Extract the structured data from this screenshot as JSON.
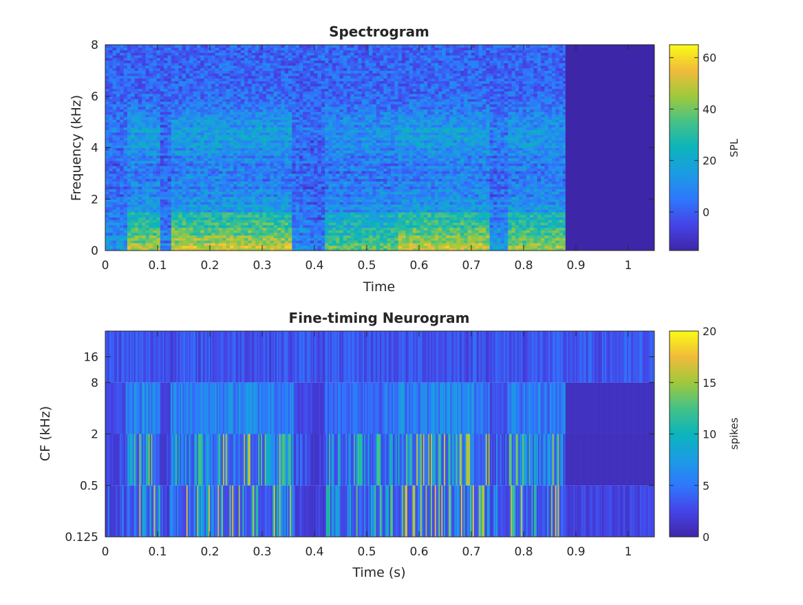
{
  "chart_data": [
    {
      "type": "heatmap",
      "title": "Spectrogram",
      "xlabel": "Time",
      "ylabel": "Frequency (kHz)",
      "xlim": [
        0,
        1.05
      ],
      "ylim": [
        0,
        8
      ],
      "xticks": [
        0,
        0.1,
        0.2,
        0.3,
        0.4,
        0.5,
        0.6,
        0.7,
        0.8,
        0.9,
        1
      ],
      "xtick_labels": [
        "0",
        "0.1",
        "0.2",
        "0.3",
        "0.4",
        "0.5",
        "0.6",
        "0.7",
        "0.8",
        "0.9",
        "1"
      ],
      "yticks": [
        0,
        2,
        4,
        6,
        8
      ],
      "ytick_labels": [
        "0",
        "2",
        "4",
        "6",
        "8"
      ],
      "signal_end": 0.88,
      "colorbar": {
        "label": "SPL",
        "range": [
          -15,
          65
        ],
        "ticks": [
          0,
          20,
          40,
          60
        ],
        "tick_labels": [
          "0",
          "20",
          "40",
          "60"
        ]
      },
      "segments": [
        {
          "t0": 0.0,
          "t1": 0.04,
          "level": 0.35
        },
        {
          "t0": 0.04,
          "t1": 0.105,
          "level": 0.95
        },
        {
          "t0": 0.105,
          "t1": 0.125,
          "level": 0.2
        },
        {
          "t0": 0.125,
          "t1": 0.36,
          "level": 1.0
        },
        {
          "t0": 0.36,
          "t1": 0.395,
          "level": 0.3
        },
        {
          "t0": 0.395,
          "t1": 0.42,
          "level": 0.15
        },
        {
          "t0": 0.42,
          "t1": 0.56,
          "level": 0.75
        },
        {
          "t0": 0.56,
          "t1": 0.735,
          "level": 1.0
        },
        {
          "t0": 0.735,
          "t1": 0.77,
          "level": 0.4
        },
        {
          "t0": 0.77,
          "t1": 0.88,
          "level": 0.9
        }
      ]
    },
    {
      "type": "heatmap",
      "title": "Fine-timing Neurogram",
      "xlabel": "Time (s)",
      "ylabel": "CF (kHz)",
      "xlim": [
        0,
        1.05
      ],
      "xticks": [
        0,
        0.1,
        0.2,
        0.3,
        0.4,
        0.5,
        0.6,
        0.7,
        0.8,
        0.9,
        1
      ],
      "xtick_labels": [
        "0",
        "0.1",
        "0.2",
        "0.3",
        "0.4",
        "0.5",
        "0.6",
        "0.7",
        "0.8",
        "0.9",
        "1"
      ],
      "ytick_labels": [
        "0.125",
        "0.5",
        "2",
        "8",
        "16"
      ],
      "bands": [
        "0.125-0.5",
        "0.5-2",
        "2-8",
        "8-32"
      ],
      "colorbar": {
        "label": "spikes",
        "range": [
          0,
          20
        ],
        "ticks": [
          0,
          5,
          10,
          15,
          20
        ],
        "tick_labels": [
          "0",
          "5",
          "10",
          "15",
          "20"
        ]
      }
    }
  ]
}
